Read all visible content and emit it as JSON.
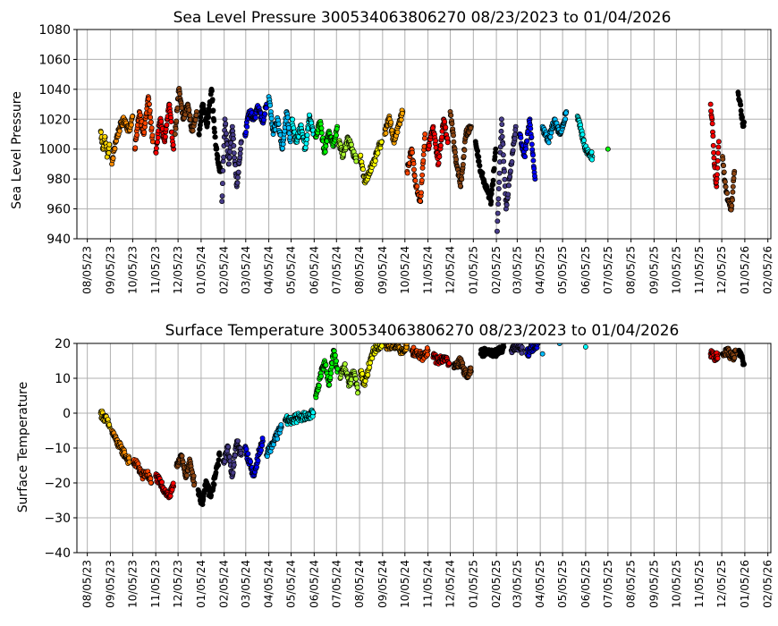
{
  "chart_data": [
    {
      "type": "scatter",
      "title": "Sea Level Pressure 300534063806270  08/23/2023 to 01/04/2026",
      "xlabel": "",
      "ylabel": "Sea Level Pressure",
      "ylim": [
        940,
        1080
      ],
      "yticks": [
        "940",
        "960",
        "980",
        "1000",
        "1020",
        "1040",
        "1060",
        "1080"
      ],
      "xticks": [
        "08/05/23",
        "09/05/23",
        "10/05/23",
        "11/05/23",
        "12/05/23",
        "01/05/24",
        "02/05/24",
        "03/05/24",
        "04/05/24",
        "05/05/24",
        "06/05/24",
        "07/05/24",
        "08/05/24",
        "09/05/24",
        "10/05/24",
        "11/05/24",
        "12/05/24",
        "01/05/25",
        "02/05/25",
        "03/05/25",
        "04/05/25",
        "05/05/25",
        "06/05/25",
        "07/05/25",
        "08/05/25",
        "09/05/25",
        "10/05/25",
        "11/05/25",
        "12/05/25",
        "01/05/26",
        "02/05/26"
      ],
      "grid": true,
      "series": [
        {
          "color": "#ffd700",
          "x": [
            "2023-08-23",
            "2023-08-26",
            "2023-08-29",
            "2023-09-01",
            "2023-09-04"
          ],
          "values": [
            1012,
            1000,
            1008,
            995,
            1003
          ]
        },
        {
          "color": "#ff8c00",
          "x": [
            "2023-09-07",
            "2023-09-12",
            "2023-09-18",
            "2023-09-24",
            "2023-09-30",
            "2023-10-05"
          ],
          "values": [
            990,
            1005,
            1015,
            1020,
            1012,
            1022
          ]
        },
        {
          "color": "#ff4500",
          "x": [
            "2023-10-08",
            "2023-10-14",
            "2023-10-20",
            "2023-10-26",
            "2023-11-01"
          ],
          "values": [
            1000,
            1025,
            1010,
            1035,
            1005
          ]
        },
        {
          "color": "#ff0000",
          "x": [
            "2023-11-05",
            "2023-11-11",
            "2023-11-17",
            "2023-11-23",
            "2023-11-29"
          ],
          "values": [
            998,
            1020,
            1005,
            1030,
            1000
          ]
        },
        {
          "color": "#8b4513",
          "x": [
            "2023-12-01",
            "2023-12-06",
            "2023-12-12",
            "2023-12-18",
            "2023-12-24",
            "2023-12-30"
          ],
          "values": [
            1010,
            1040,
            1020,
            1030,
            1012,
            1025
          ]
        },
        {
          "color": "#000000",
          "x": [
            "2024-01-02",
            "2024-01-07",
            "2024-01-13",
            "2024-01-19",
            "2024-01-25",
            "2024-01-31"
          ],
          "values": [
            1010,
            1030,
            1015,
            1040,
            1000,
            985
          ]
        },
        {
          "color": "#483d8b",
          "x": [
            "2024-02-02",
            "2024-02-06",
            "2024-02-11",
            "2024-02-16",
            "2024-02-22",
            "2024-02-28"
          ],
          "values": [
            965,
            1020,
            990,
            1015,
            975,
            1005
          ]
        },
        {
          "color": "#0000ff",
          "x": [
            "2024-03-04",
            "2024-03-10",
            "2024-03-16",
            "2024-03-22",
            "2024-03-28",
            "2024-04-02"
          ],
          "values": [
            1010,
            1025,
            1020,
            1028,
            1018,
            1030
          ]
        },
        {
          "color": "#00bfff",
          "x": [
            "2024-04-05",
            "2024-04-11",
            "2024-04-17",
            "2024-04-23",
            "2024-04-29",
            "2024-05-04"
          ],
          "values": [
            1035,
            1010,
            1020,
            1000,
            1025,
            1005
          ]
        },
        {
          "color": "#00ffff",
          "x": [
            "2024-05-06",
            "2024-05-12",
            "2024-05-18",
            "2024-05-24",
            "2024-05-30",
            "2024-06-04"
          ],
          "values": [
            1020,
            1005,
            1015,
            1000,
            1022,
            1010
          ]
        },
        {
          "color": "#00ff00",
          "x": [
            "2024-06-07",
            "2024-06-13",
            "2024-06-19",
            "2024-06-25",
            "2024-07-01",
            "2024-07-06"
          ],
          "values": [
            1008,
            1018,
            998,
            1012,
            1002,
            1015
          ]
        },
        {
          "color": "#adff2f",
          "x": [
            "2024-07-08",
            "2024-07-14",
            "2024-07-20",
            "2024-07-26",
            "2024-08-01"
          ],
          "values": [
            1005,
            995,
            1008,
            1000,
            992
          ]
        },
        {
          "color": "#ffff00",
          "x": [
            "2024-08-06",
            "2024-08-12",
            "2024-08-18",
            "2024-08-24",
            "2024-08-30",
            "2024-09-04"
          ],
          "values": [
            995,
            978,
            985,
            990,
            1000,
            1005
          ]
        },
        {
          "color": "#ffa500",
          "x": [
            "2024-09-08",
            "2024-09-14",
            "2024-09-20",
            "2024-09-26",
            "2024-10-02"
          ],
          "values": [
            1010,
            1022,
            1005,
            1015,
            1025
          ]
        },
        {
          "color": "#ff4500",
          "x": [
            "2024-10-08",
            "2024-10-14",
            "2024-10-20",
            "2024-10-26",
            "2024-11-01"
          ],
          "values": [
            985,
            1000,
            975,
            965,
            1010
          ]
        },
        {
          "color": "#ff0000",
          "x": [
            "2024-11-05",
            "2024-11-12",
            "2024-11-19",
            "2024-11-26",
            "2024-12-02"
          ],
          "values": [
            1000,
            1015,
            990,
            1020,
            1005
          ]
        },
        {
          "color": "#8b4513",
          "x": [
            "2024-12-05",
            "2024-12-12",
            "2024-12-19",
            "2024-12-26",
            "2025-01-02"
          ],
          "values": [
            1025,
            995,
            975,
            1010,
            1015
          ]
        },
        {
          "color": "#000000",
          "x": [
            "2025-01-08",
            "2025-01-15",
            "2025-01-22",
            "2025-01-29",
            "2025-02-04"
          ],
          "values": [
            1005,
            985,
            975,
            965,
            1000
          ]
        },
        {
          "color": "#483d8b",
          "x": [
            "2025-02-06",
            "2025-02-12",
            "2025-02-18",
            "2025-02-25",
            "2025-03-03"
          ],
          "values": [
            945,
            1020,
            960,
            990,
            1015
          ]
        },
        {
          "color": "#0000ff",
          "x": [
            "2025-03-08",
            "2025-03-15",
            "2025-03-22",
            "2025-03-29"
          ],
          "values": [
            1010,
            995,
            1020,
            980
          ]
        },
        {
          "color": "#00bfff",
          "x": [
            "2025-04-08",
            "2025-04-16",
            "2025-04-24",
            "2025-05-02",
            "2025-05-10"
          ],
          "values": [
            1015,
            1005,
            1020,
            1010,
            1025
          ]
        },
        {
          "color": "#00ffff",
          "x": [
            "2025-05-25",
            "2025-06-05",
            "2025-06-14"
          ],
          "values": [
            1022,
            1000,
            995
          ]
        },
        {
          "color": "#00ff00",
          "x": [
            "2025-07-05"
          ],
          "values": [
            1000
          ]
        },
        {
          "color": "#ff0000",
          "x": [
            "2025-11-20",
            "2025-11-22",
            "2025-11-25",
            "2025-11-28",
            "2025-12-01"
          ],
          "values": [
            1030,
            1020,
            990,
            975,
            1005
          ]
        },
        {
          "color": "#8b4513",
          "x": [
            "2025-12-06",
            "2025-12-10",
            "2025-12-14",
            "2025-12-18",
            "2025-12-22"
          ],
          "values": [
            995,
            975,
            965,
            960,
            985
          ]
        },
        {
          "color": "#000000",
          "x": [
            "2025-12-27",
            "2025-12-30",
            "2026-01-02",
            "2026-01-04"
          ],
          "values": [
            1038,
            1030,
            1017,
            1018
          ]
        }
      ]
    },
    {
      "type": "scatter",
      "title": "Surface Temperature 300534063806270  08/23/2023 to 01/04/2026",
      "xlabel": "",
      "ylabel": "Surface Temperature",
      "ylim": [
        -40,
        20
      ],
      "yticks": [
        "−40",
        "−30",
        "−20",
        "−10",
        "0",
        "10",
        "20"
      ],
      "xticks": [
        "08/05/23",
        "09/05/23",
        "10/05/23",
        "11/05/23",
        "12/05/23",
        "01/05/24",
        "02/05/24",
        "03/05/24",
        "04/05/24",
        "05/05/24",
        "06/05/24",
        "07/05/24",
        "08/05/24",
        "09/05/24",
        "10/05/24",
        "11/05/24",
        "12/05/24",
        "01/05/25",
        "02/05/25",
        "03/05/25",
        "04/05/25",
        "05/05/25",
        "06/05/25",
        "07/05/25",
        "08/05/25",
        "09/05/25",
        "10/05/25",
        "11/05/25",
        "12/05/25",
        "01/05/26",
        "02/05/26"
      ],
      "grid": true,
      "series": [
        {
          "color": "#ffd700",
          "x": [
            "2023-08-23",
            "2023-08-27",
            "2023-08-31",
            "2023-09-04"
          ],
          "values": [
            0,
            -1,
            -2,
            -4
          ]
        },
        {
          "color": "#ff8c00",
          "x": [
            "2023-09-07",
            "2023-09-13",
            "2023-09-19",
            "2023-09-25",
            "2023-10-01"
          ],
          "values": [
            -5,
            -8,
            -10,
            -12,
            -14
          ]
        },
        {
          "color": "#ff4500",
          "x": [
            "2023-10-06",
            "2023-10-12",
            "2023-10-18",
            "2023-10-24",
            "2023-10-30"
          ],
          "values": [
            -14,
            -15,
            -18,
            -17,
            -20
          ]
        },
        {
          "color": "#ff0000",
          "x": [
            "2023-11-05",
            "2023-11-11",
            "2023-11-17",
            "2023-11-23",
            "2023-11-29"
          ],
          "values": [
            -18,
            -20,
            -22,
            -24,
            -21
          ]
        },
        {
          "color": "#8b4513",
          "x": [
            "2023-12-03",
            "2023-12-09",
            "2023-12-15",
            "2023-12-21",
            "2023-12-27"
          ],
          "values": [
            -15,
            -12,
            -18,
            -14,
            -20
          ]
        },
        {
          "color": "#000000",
          "x": [
            "2024-01-01",
            "2024-01-06",
            "2024-01-12",
            "2024-01-18",
            "2024-01-24",
            "2024-01-30"
          ],
          "values": [
            -22,
            -26,
            -20,
            -24,
            -18,
            -12
          ]
        },
        {
          "color": "#483d8b",
          "x": [
            "2024-02-04",
            "2024-02-10",
            "2024-02-16",
            "2024-02-22",
            "2024-02-28"
          ],
          "values": [
            -14,
            -10,
            -18,
            -8,
            -12
          ]
        },
        {
          "color": "#0000ff",
          "x": [
            "2024-03-04",
            "2024-03-10",
            "2024-03-16",
            "2024-03-22",
            "2024-03-28"
          ],
          "values": [
            -10,
            -14,
            -18,
            -12,
            -8
          ]
        },
        {
          "color": "#00bfff",
          "x": [
            "2024-04-02",
            "2024-04-07",
            "2024-04-12",
            "2024-04-17",
            "2024-04-22"
          ],
          "values": [
            -12,
            -10,
            -8,
            -6,
            -4
          ]
        },
        {
          "color": "#00ffff",
          "x": [
            "2024-04-27",
            "2024-05-07",
            "2024-05-17",
            "2024-05-27",
            "2024-06-04"
          ],
          "values": [
            -2,
            -2,
            -1,
            -1,
            0
          ]
        },
        {
          "color": "#00ff00",
          "x": [
            "2024-06-07",
            "2024-06-13",
            "2024-06-19",
            "2024-06-25",
            "2024-07-01",
            "2024-07-07"
          ],
          "values": [
            5,
            10,
            15,
            8,
            18,
            12
          ]
        },
        {
          "color": "#adff2f",
          "x": [
            "2024-07-10",
            "2024-07-16",
            "2024-07-22",
            "2024-07-28",
            "2024-08-03"
          ],
          "values": [
            10,
            14,
            8,
            12,
            6
          ]
        },
        {
          "color": "#ffff00",
          "x": [
            "2024-08-06",
            "2024-08-12",
            "2024-08-18",
            "2024-08-24",
            "2024-08-30",
            "2024-09-05"
          ],
          "values": [
            12,
            8,
            14,
            18,
            19,
            20
          ]
        },
        {
          "color": "#ffa500",
          "x": [
            "2024-09-10",
            "2024-09-20",
            "2024-09-30",
            "2024-10-08"
          ],
          "values": [
            19,
            20,
            18,
            19
          ]
        },
        {
          "color": "#ff4500",
          "x": [
            "2024-10-14",
            "2024-10-22",
            "2024-10-30",
            "2024-11-05"
          ],
          "values": [
            18,
            17,
            16,
            18
          ]
        },
        {
          "color": "#ff0000",
          "x": [
            "2024-11-12",
            "2024-11-20",
            "2024-11-28",
            "2024-12-04"
          ],
          "values": [
            16,
            15,
            16,
            14
          ]
        },
        {
          "color": "#8b4513",
          "x": [
            "2024-12-10",
            "2024-12-18",
            "2024-12-26",
            "2025-01-02"
          ],
          "values": [
            13,
            15,
            11,
            12
          ]
        },
        {
          "color": "#000000",
          "x": [
            "2025-01-15",
            "2025-01-25",
            "2025-02-05",
            "2025-02-15"
          ],
          "values": [
            17,
            18,
            17,
            19
          ]
        },
        {
          "color": "#483d8b",
          "x": [
            "2025-02-25",
            "2025-03-05",
            "2025-03-12"
          ],
          "values": [
            18,
            19,
            18
          ]
        },
        {
          "color": "#0000ff",
          "x": [
            "2025-03-18",
            "2025-03-26",
            "2025-04-02"
          ],
          "values": [
            17,
            19,
            20
          ]
        },
        {
          "color": "#00bfff",
          "x": [
            "2025-04-08",
            "2025-05-01"
          ],
          "values": [
            17,
            20
          ]
        },
        {
          "color": "#00ffff",
          "x": [
            "2025-06-05"
          ],
          "values": [
            19
          ]
        },
        {
          "color": "#ff0000",
          "x": [
            "2025-11-20",
            "2025-11-25",
            "2025-11-30"
          ],
          "values": [
            17,
            16,
            17
          ]
        },
        {
          "color": "#8b4513",
          "x": [
            "2025-12-06",
            "2025-12-12",
            "2025-12-18",
            "2025-12-24"
          ],
          "values": [
            17,
            18,
            16,
            17
          ]
        },
        {
          "color": "#000000",
          "x": [
            "2025-12-28",
            "2026-01-01",
            "2026-01-04"
          ],
          "values": [
            18,
            16,
            14
          ]
        }
      ]
    }
  ]
}
